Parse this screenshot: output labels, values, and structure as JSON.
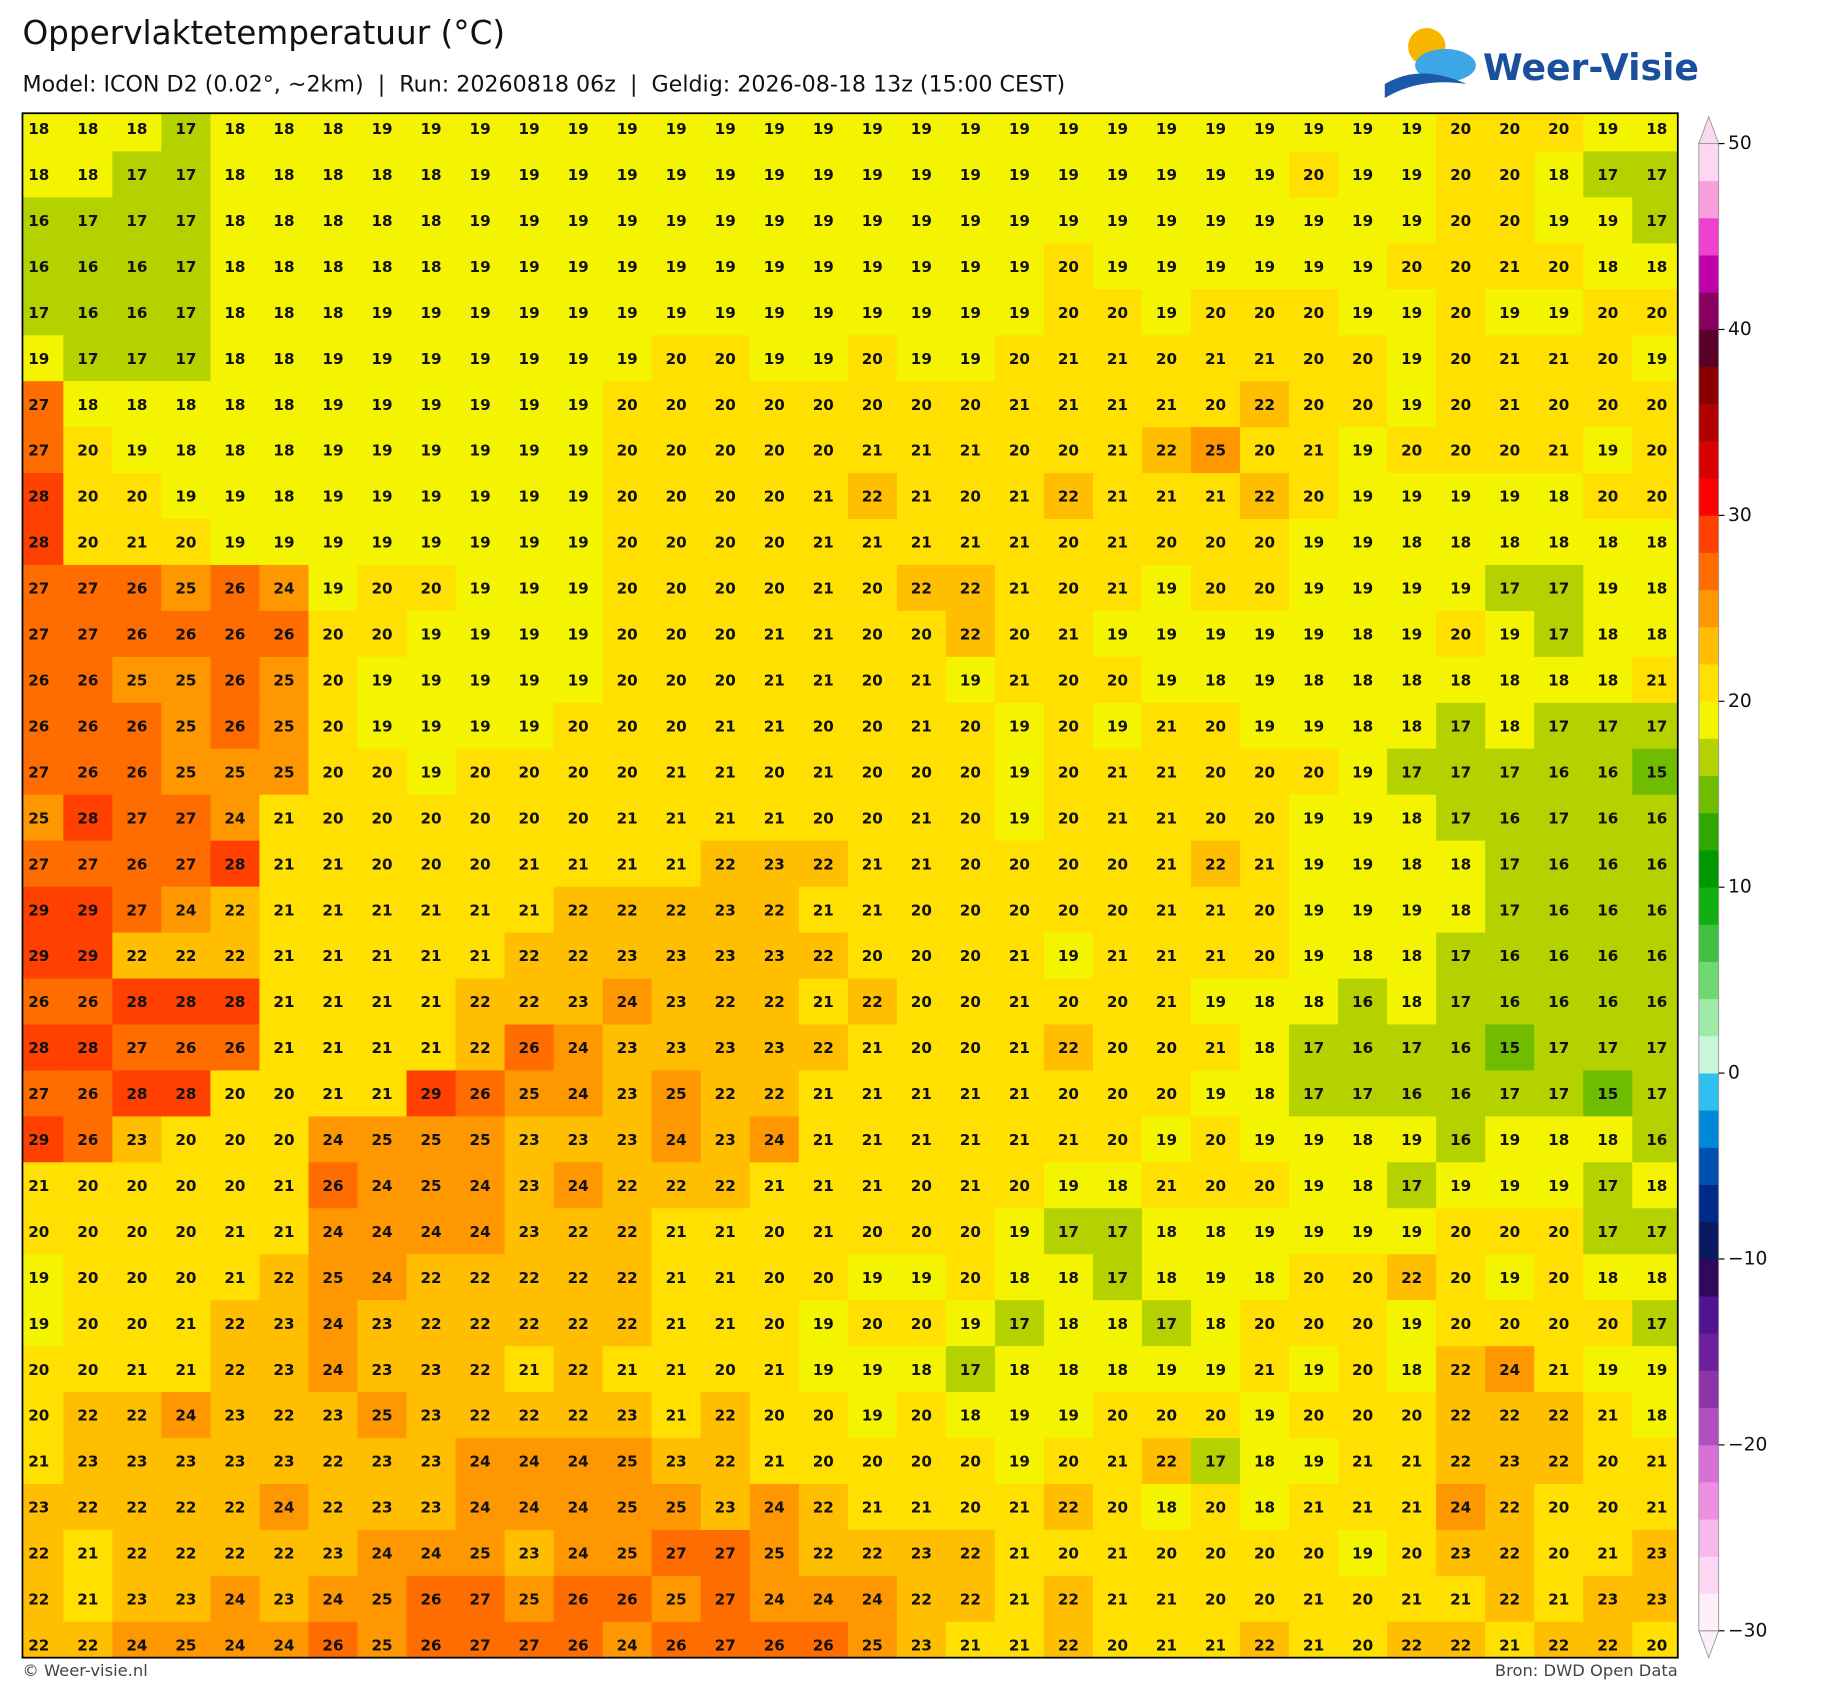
{
  "header": {
    "title": "Oppervlaktetemperatuur (°C)",
    "subtitle": "Model: ICON D2 (0.02°, ~2km)  |  Run: 20260818 06z  |  Geldig: 2026-08-18 13z (15:00 CEST)",
    "logo": "Weer-Visie"
  },
  "map": {
    "rows": [
      [
        18,
        18,
        18,
        17,
        18,
        18,
        18,
        19,
        19,
        19,
        19,
        19,
        19,
        19,
        19,
        19,
        19,
        19,
        19,
        19,
        19,
        19,
        19,
        19,
        19,
        19,
        19,
        19,
        19,
        20,
        20,
        20,
        19,
        18
      ],
      [
        18,
        18,
        17,
        17,
        18,
        18,
        18,
        18,
        18,
        19,
        19,
        19,
        19,
        19,
        19,
        19,
        19,
        19,
        19,
        19,
        19,
        19,
        19,
        19,
        19,
        19,
        20,
        19,
        19,
        20,
        20,
        18,
        17,
        17
      ],
      [
        16,
        17,
        17,
        17,
        18,
        18,
        18,
        18,
        18,
        19,
        19,
        19,
        19,
        19,
        19,
        19,
        19,
        19,
        19,
        19,
        19,
        19,
        19,
        19,
        19,
        19,
        19,
        19,
        19,
        20,
        20,
        19,
        19,
        17
      ],
      [
        16,
        16,
        16,
        17,
        18,
        18,
        18,
        18,
        18,
        19,
        19,
        19,
        19,
        19,
        19,
        19,
        19,
        19,
        19,
        19,
        19,
        20,
        19,
        19,
        19,
        19,
        19,
        19,
        20,
        20,
        21,
        20,
        18,
        18
      ],
      [
        17,
        16,
        16,
        17,
        18,
        18,
        18,
        19,
        19,
        19,
        19,
        19,
        19,
        19,
        19,
        19,
        19,
        19,
        19,
        19,
        19,
        20,
        20,
        19,
        20,
        20,
        20,
        19,
        19,
        20,
        19,
        19,
        20,
        20
      ],
      [
        19,
        17,
        17,
        17,
        18,
        18,
        19,
        19,
        19,
        19,
        19,
        19,
        19,
        20,
        20,
        19,
        19,
        20,
        19,
        19,
        20,
        21,
        21,
        20,
        21,
        21,
        20,
        20,
        19,
        20,
        21,
        21,
        20,
        19
      ],
      [
        27,
        18,
        18,
        18,
        18,
        18,
        19,
        19,
        19,
        19,
        19,
        19,
        20,
        20,
        20,
        20,
        20,
        20,
        20,
        20,
        21,
        21,
        21,
        21,
        20,
        22,
        20,
        20,
        19,
        20,
        21,
        20,
        20,
        20
      ],
      [
        27,
        20,
        19,
        18,
        18,
        18,
        19,
        19,
        19,
        19,
        19,
        19,
        20,
        20,
        20,
        20,
        20,
        21,
        21,
        21,
        20,
        20,
        21,
        22,
        25,
        20,
        21,
        19,
        20,
        20,
        20,
        21,
        19,
        20
      ],
      [
        28,
        20,
        20,
        19,
        19,
        18,
        19,
        19,
        19,
        19,
        19,
        19,
        20,
        20,
        20,
        20,
        21,
        22,
        21,
        20,
        21,
        22,
        21,
        21,
        21,
        22,
        20,
        19,
        19,
        19,
        19,
        18,
        20,
        20
      ],
      [
        28,
        20,
        21,
        20,
        19,
        19,
        19,
        19,
        19,
        19,
        19,
        19,
        20,
        20,
        20,
        20,
        21,
        21,
        21,
        21,
        21,
        20,
        21,
        20,
        20,
        20,
        19,
        19,
        18,
        18,
        18,
        18,
        18,
        18
      ],
      [
        27,
        27,
        26,
        25,
        26,
        24,
        19,
        20,
        20,
        19,
        19,
        19,
        20,
        20,
        20,
        20,
        21,
        20,
        22,
        22,
        21,
        20,
        21,
        19,
        20,
        20,
        19,
        19,
        19,
        19,
        17,
        17,
        19,
        18
      ],
      [
        27,
        27,
        26,
        26,
        26,
        26,
        20,
        20,
        19,
        19,
        19,
        19,
        20,
        20,
        20,
        21,
        21,
        20,
        20,
        22,
        20,
        21,
        19,
        19,
        19,
        19,
        19,
        18,
        19,
        20,
        19,
        17,
        18,
        18
      ],
      [
        26,
        26,
        25,
        25,
        26,
        25,
        20,
        19,
        19,
        19,
        19,
        19,
        20,
        20,
        20,
        21,
        21,
        20,
        21,
        19,
        21,
        20,
        20,
        19,
        18,
        19,
        18,
        18,
        18,
        18,
        18,
        18,
        18,
        21
      ],
      [
        26,
        26,
        26,
        25,
        26,
        25,
        20,
        19,
        19,
        19,
        19,
        20,
        20,
        20,
        21,
        21,
        20,
        20,
        21,
        20,
        19,
        20,
        19,
        21,
        20,
        19,
        19,
        18,
        18,
        17,
        18,
        17,
        17,
        17
      ],
      [
        27,
        26,
        26,
        25,
        25,
        25,
        20,
        20,
        19,
        20,
        20,
        20,
        20,
        21,
        21,
        20,
        21,
        20,
        20,
        20,
        19,
        20,
        21,
        21,
        20,
        20,
        20,
        19,
        17,
        17,
        17,
        16,
        16,
        15
      ],
      [
        25,
        28,
        27,
        27,
        24,
        21,
        20,
        20,
        20,
        20,
        20,
        20,
        21,
        21,
        21,
        21,
        20,
        20,
        21,
        20,
        19,
        20,
        21,
        21,
        20,
        20,
        19,
        19,
        18,
        17,
        16,
        17,
        16,
        16
      ],
      [
        27,
        27,
        26,
        27,
        28,
        21,
        21,
        20,
        20,
        20,
        21,
        21,
        21,
        21,
        22,
        23,
        22,
        21,
        21,
        20,
        20,
        20,
        20,
        21,
        22,
        21,
        19,
        19,
        18,
        18,
        17,
        16,
        16,
        16
      ],
      [
        29,
        29,
        27,
        24,
        22,
        21,
        21,
        21,
        21,
        21,
        21,
        22,
        22,
        22,
        23,
        22,
        21,
        21,
        20,
        20,
        20,
        20,
        20,
        21,
        21,
        20,
        19,
        19,
        19,
        18,
        17,
        16,
        16,
        16
      ],
      [
        29,
        29,
        22,
        22,
        22,
        21,
        21,
        21,
        21,
        21,
        22,
        22,
        23,
        23,
        23,
        23,
        22,
        20,
        20,
        20,
        21,
        19,
        21,
        21,
        21,
        20,
        19,
        18,
        18,
        17,
        16,
        16,
        16,
        16
      ],
      [
        26,
        26,
        28,
        28,
        28,
        21,
        21,
        21,
        21,
        22,
        22,
        23,
        24,
        23,
        22,
        22,
        21,
        22,
        20,
        20,
        21,
        20,
        20,
        21,
        19,
        18,
        18,
        16,
        18,
        17,
        16,
        16,
        16,
        16
      ],
      [
        28,
        28,
        27,
        26,
        26,
        21,
        21,
        21,
        21,
        22,
        26,
        24,
        23,
        23,
        23,
        23,
        22,
        21,
        20,
        20,
        21,
        22,
        20,
        20,
        21,
        18,
        17,
        16,
        17,
        16,
        15,
        17,
        17,
        17
      ],
      [
        27,
        26,
        28,
        28,
        20,
        20,
        21,
        21,
        29,
        26,
        25,
        24,
        23,
        25,
        22,
        22,
        21,
        21,
        21,
        21,
        21,
        20,
        20,
        20,
        19,
        18,
        17,
        17,
        16,
        16,
        17,
        17,
        15,
        17
      ],
      [
        29,
        26,
        23,
        20,
        20,
        20,
        24,
        25,
        25,
        25,
        23,
        23,
        23,
        24,
        23,
        24,
        21,
        21,
        21,
        21,
        21,
        21,
        20,
        19,
        20,
        19,
        19,
        18,
        19,
        16,
        19,
        18,
        18,
        16
      ],
      [
        21,
        20,
        20,
        20,
        20,
        21,
        26,
        24,
        25,
        24,
        23,
        24,
        22,
        22,
        22,
        21,
        21,
        21,
        20,
        21,
        20,
        19,
        18,
        21,
        20,
        20,
        19,
        18,
        17,
        19,
        19,
        19,
        17,
        18
      ],
      [
        20,
        20,
        20,
        20,
        21,
        21,
        24,
        24,
        24,
        24,
        23,
        22,
        22,
        21,
        21,
        20,
        21,
        20,
        20,
        20,
        19,
        17,
        17,
        18,
        18,
        19,
        19,
        19,
        19,
        20,
        20,
        20,
        17,
        17
      ],
      [
        19,
        20,
        20,
        20,
        21,
        22,
        25,
        24,
        22,
        22,
        22,
        22,
        22,
        21,
        21,
        20,
        20,
        19,
        19,
        20,
        18,
        18,
        17,
        18,
        19,
        18,
        20,
        20,
        22,
        20,
        19,
        20,
        18,
        18
      ],
      [
        19,
        20,
        20,
        21,
        22,
        23,
        24,
        23,
        22,
        22,
        22,
        22,
        22,
        21,
        21,
        20,
        19,
        20,
        20,
        19,
        17,
        18,
        18,
        17,
        18,
        20,
        20,
        20,
        19,
        20,
        20,
        20,
        20,
        17
      ],
      [
        20,
        20,
        21,
        21,
        22,
        23,
        24,
        23,
        23,
        22,
        21,
        22,
        21,
        21,
        20,
        21,
        19,
        19,
        18,
        17,
        18,
        18,
        18,
        19,
        19,
        21,
        19,
        20,
        18,
        22,
        24,
        21,
        19,
        19
      ],
      [
        20,
        22,
        22,
        24,
        23,
        22,
        23,
        25,
        23,
        22,
        22,
        22,
        23,
        21,
        22,
        20,
        20,
        19,
        20,
        18,
        19,
        19,
        20,
        20,
        20,
        19,
        20,
        20,
        20,
        22,
        22,
        22,
        21,
        18
      ],
      [
        21,
        23,
        23,
        23,
        23,
        23,
        22,
        23,
        23,
        24,
        24,
        24,
        25,
        23,
        22,
        21,
        20,
        20,
        20,
        20,
        19,
        20,
        21,
        22,
        17,
        18,
        19,
        21,
        21,
        22,
        23,
        22,
        20,
        21
      ],
      [
        23,
        22,
        22,
        22,
        22,
        24,
        22,
        23,
        23,
        24,
        24,
        24,
        25,
        25,
        23,
        24,
        22,
        21,
        21,
        20,
        21,
        22,
        20,
        18,
        20,
        18,
        21,
        21,
        21,
        24,
        22,
        20,
        20,
        21
      ],
      [
        22,
        21,
        22,
        22,
        22,
        22,
        23,
        24,
        24,
        25,
        23,
        24,
        25,
        27,
        27,
        25,
        22,
        22,
        23,
        22,
        21,
        20,
        21,
        20,
        20,
        20,
        20,
        19,
        20,
        23,
        22,
        20,
        21,
        23
      ],
      [
        22,
        21,
        23,
        23,
        24,
        23,
        24,
        25,
        26,
        27,
        25,
        26,
        26,
        25,
        27,
        24,
        24,
        24,
        22,
        22,
        21,
        22,
        21,
        21,
        20,
        20,
        21,
        20,
        21,
        21,
        22,
        21,
        23,
        23
      ],
      [
        22,
        22,
        24,
        25,
        24,
        24,
        26,
        25,
        26,
        27,
        27,
        26,
        24,
        26,
        27,
        26,
        26,
        25,
        23,
        21,
        21,
        22,
        20,
        21,
        21,
        22,
        21,
        20,
        22,
        22,
        21,
        22,
        22,
        20
      ]
    ]
  },
  "colorbar": {
    "lim": [
      -30,
      50
    ],
    "colors": [
      "#fdf0fb",
      "#fcd8f4",
      "#f8b8ec",
      "#ee90e2",
      "#d870d8",
      "#b050c0",
      "#8c34a8",
      "#6c209c",
      "#501490",
      "#30085c",
      "#0a1a60",
      "#002a8a",
      "#0050b0",
      "#0088d8",
      "#30c0f0",
      "#c8f8d8",
      "#a0eaa8",
      "#70d870",
      "#40c040",
      "#10b010",
      "#009800",
      "#30a800",
      "#70bc00",
      "#b4d200",
      "#f4f400",
      "#ffe000",
      "#ffbe00",
      "#ff9800",
      "#ff6c00",
      "#ff4000",
      "#ff0000",
      "#d80000",
      "#b00000",
      "#8a0000",
      "#5a0028",
      "#8a0060",
      "#c000a8",
      "#f040d0",
      "#f8a0dc",
      "#fcd8f0"
    ],
    "ticks": [
      {
        "value": -30,
        "label": "−30"
      },
      {
        "value": -20,
        "label": "−20"
      },
      {
        "value": -10,
        "label": "−10"
      },
      0,
      10,
      20,
      30,
      40,
      50
    ]
  },
  "footer": {
    "credit": "© Weer-visie.nl",
    "source": "Bron: DWD Open Data"
  }
}
